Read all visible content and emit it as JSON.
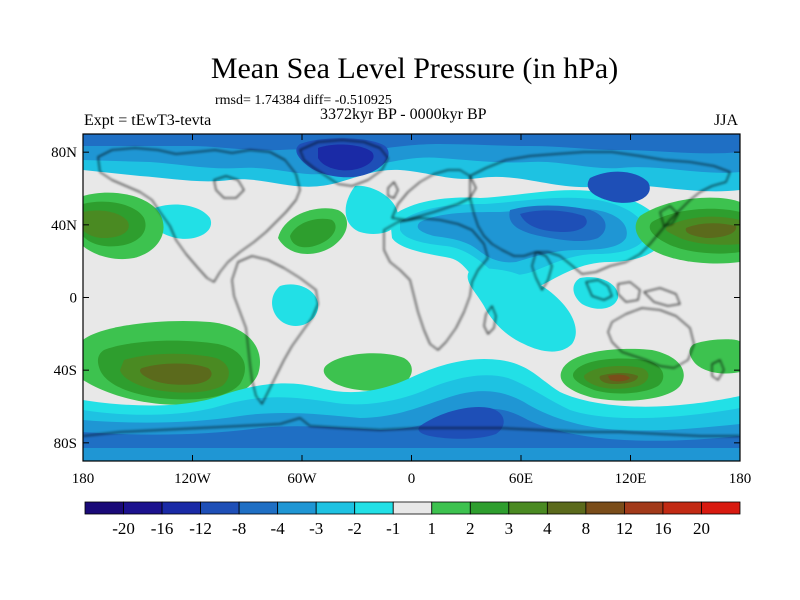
{
  "title": "Mean Sea Level Pressure (in hPa)",
  "stats": "rmsd= 1.74384 diff= -0.510925",
  "experiment": "Expt = tEwT3-tevta",
  "period": "3372kyr BP - 0000kyr BP",
  "season": "JJA",
  "map": {
    "lat_labels": [
      {
        "lat": 80,
        "text": "80N"
      },
      {
        "lat": 40,
        "text": "40N"
      },
      {
        "lat": 0,
        "text": "0"
      },
      {
        "lat": -40,
        "text": "40S"
      },
      {
        "lat": -80,
        "text": "80S"
      }
    ],
    "lon_labels": [
      {
        "lon": -180,
        "text": "180"
      },
      {
        "lon": -120,
        "text": "120W"
      },
      {
        "lon": -60,
        "text": "60W"
      },
      {
        "lon": 0,
        "text": "0"
      },
      {
        "lon": 60,
        "text": "60E"
      },
      {
        "lon": 120,
        "text": "120E"
      },
      {
        "lon": 180,
        "text": "180"
      }
    ]
  },
  "colorbar": {
    "colors": [
      "#1a0a78",
      "#1c128e",
      "#1a2aa6",
      "#1e4fb7",
      "#1f6fc4",
      "#1f96d4",
      "#1ec2e2",
      "#22e0e6",
      "#e8e8e8",
      "#3dc24f",
      "#2e9e2e",
      "#4a8a22",
      "#5b6a1c",
      "#7a4d1a",
      "#a23a1a",
      "#c22a14",
      "#d81a10"
    ],
    "labels": [
      "-20",
      "-16",
      "-12",
      "-8",
      "-4",
      "-3",
      "-2",
      "-1",
      "1",
      "2",
      "3",
      "4",
      "8",
      "12",
      "16",
      "20"
    ]
  }
}
